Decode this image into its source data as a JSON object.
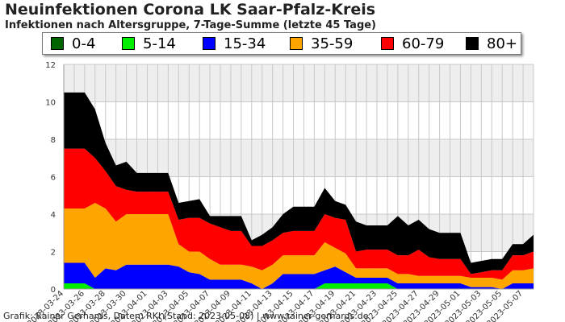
{
  "header": {
    "title": "Neuinfektionen Corona LK Saar-Pfalz-Kreis",
    "subtitle": "Infektionen nach Altersgruppe, 7-Tage-Summe (letzte 45 Tage)"
  },
  "footer": {
    "credit": "Grafik: Rainer Gerhards, Daten: RKI (Stand: 2023-05-08) | www.rainer-gerhards.de"
  },
  "chart_data": {
    "type": "area",
    "stacked": true,
    "title": "Neuinfektionen Corona LK Saar-Pfalz-Kreis",
    "subtitle": "Infektionen nach Altersgruppe, 7-Tage-Summe (letzte 45 Tage)",
    "xlabel": "",
    "ylabel": "",
    "ylim": [
      0,
      12
    ],
    "yticks": [
      0,
      2,
      4,
      6,
      8,
      10,
      12
    ],
    "grid": true,
    "legend_position": "top",
    "x": [
      "2023-03-24",
      "2023-03-25",
      "2023-03-26",
      "2023-03-27",
      "2023-03-28",
      "2023-03-29",
      "2023-03-30",
      "2023-03-31",
      "2023-04-01",
      "2023-04-02",
      "2023-04-03",
      "2023-04-04",
      "2023-04-05",
      "2023-04-06",
      "2023-04-07",
      "2023-04-08",
      "2023-04-09",
      "2023-04-10",
      "2023-04-11",
      "2023-04-12",
      "2023-04-13",
      "2023-04-14",
      "2023-04-15",
      "2023-04-16",
      "2023-04-17",
      "2023-04-18",
      "2023-04-19",
      "2023-04-20",
      "2023-04-21",
      "2023-04-22",
      "2023-04-23",
      "2023-04-24",
      "2023-04-25",
      "2023-04-26",
      "2023-04-27",
      "2023-04-28",
      "2023-04-29",
      "2023-04-30",
      "2023-05-01",
      "2023-05-02",
      "2023-05-03",
      "2023-05-04",
      "2023-05-05",
      "2023-05-06",
      "2023-05-07",
      "2023-05-08"
    ],
    "xtick_labels": [
      "2023-03-24",
      "2023-03-26",
      "2023-03-28",
      "2023-03-30",
      "2023-04-01",
      "2023-04-03",
      "2023-04-05",
      "2023-04-07",
      "2023-04-09",
      "2023-04-11",
      "2023-04-13",
      "2023-04-15",
      "2023-04-17",
      "2023-04-19",
      "2023-04-21",
      "2023-04-23",
      "2023-04-25",
      "2023-04-27",
      "2023-04-29",
      "2023-05-01",
      "2023-05-03",
      "2023-05-05",
      "2023-05-07"
    ],
    "series": [
      {
        "name": "0-4",
        "color": "#006400",
        "values": [
          0,
          0,
          0,
          0,
          0,
          0,
          0,
          0,
          0,
          0,
          0,
          0,
          0,
          0,
          0,
          0,
          0,
          0,
          0,
          0,
          0,
          0,
          0,
          0,
          0,
          0,
          0,
          0,
          0,
          0,
          0,
          0,
          0,
          0,
          0,
          0,
          0,
          0,
          0,
          0,
          0,
          0,
          0,
          0,
          0,
          0
        ]
      },
      {
        "name": "5-14",
        "color": "#00ee00",
        "values": [
          0.3,
          0.3,
          0.3,
          0,
          0,
          0,
          0,
          0,
          0,
          0,
          0,
          0,
          0,
          0,
          0,
          0,
          0,
          0,
          0,
          0,
          0,
          0,
          0,
          0,
          0,
          0.3,
          0.3,
          0.3,
          0.3,
          0.3,
          0.3,
          0.3,
          0,
          0,
          0,
          0,
          0,
          0,
          0,
          0,
          0,
          0,
          0,
          0,
          0,
          0
        ]
      },
      {
        "name": "15-34",
        "color": "#0000ff",
        "values": [
          1.1,
          1.1,
          1.1,
          0.6,
          1.1,
          1.0,
          1.3,
          1.3,
          1.3,
          1.3,
          1.3,
          1.2,
          0.9,
          0.8,
          0.5,
          0.5,
          0.5,
          0.5,
          0.3,
          0,
          0.3,
          0.8,
          0.8,
          0.8,
          0.8,
          0.7,
          0.9,
          0.6,
          0.3,
          0.3,
          0.3,
          0.3,
          0.3,
          0.3,
          0.3,
          0.3,
          0.3,
          0.3,
          0.3,
          0.1,
          0.1,
          0.1,
          0.0,
          0.3,
          0.3,
          0.3
        ]
      },
      {
        "name": "35-59",
        "color": "#ffa500",
        "values": [
          2.9,
          2.9,
          2.9,
          4.0,
          3.2,
          2.6,
          2.7,
          2.7,
          2.7,
          2.7,
          2.7,
          1.2,
          1.1,
          1.2,
          1.1,
          0.8,
          0.8,
          0.8,
          0.9,
          1.0,
          1.0,
          1.0,
          1.0,
          1.0,
          1.0,
          1.5,
          1.0,
          1.0,
          0.5,
          0.5,
          0.5,
          0.5,
          0.5,
          0.5,
          0.4,
          0.4,
          0.4,
          0.4,
          0.4,
          0.5,
          0.5,
          0.5,
          0.5,
          0.7,
          0.7,
          0.8
        ]
      },
      {
        "name": "60-79",
        "color": "#ff0000",
        "values": [
          3.2,
          3.2,
          3.2,
          2.4,
          2.0,
          1.9,
          1.3,
          1.2,
          1.2,
          1.2,
          1.2,
          1.3,
          1.8,
          1.8,
          1.9,
          2.0,
          1.8,
          1.8,
          1.1,
          1.3,
          1.3,
          1.2,
          1.3,
          1.3,
          1.3,
          1.5,
          1.6,
          1.8,
          0.9,
          1.0,
          1.0,
          1.0,
          1.0,
          1.0,
          1.4,
          1.0,
          0.9,
          0.9,
          0.9,
          0.2,
          0.3,
          0.4,
          0.5,
          0.8,
          0.8,
          0.9
        ]
      },
      {
        "name": "80+",
        "color": "#000000",
        "values": [
          3.0,
          3.0,
          3.0,
          2.6,
          1.5,
          1.1,
          1.5,
          1.0,
          1.0,
          1.0,
          1.0,
          0.9,
          0.9,
          1.0,
          0.4,
          0.6,
          0.8,
          0.8,
          0.3,
          0.6,
          0.7,
          1.0,
          1.3,
          1.3,
          1.3,
          1.4,
          0.9,
          0.8,
          1.6,
          1.3,
          1.3,
          1.3,
          2.1,
          1.6,
          1.6,
          1.5,
          1.4,
          1.4,
          1.4,
          0.6,
          0.6,
          0.6,
          0.6,
          0.6,
          0.6,
          0.9
        ]
      }
    ]
  }
}
